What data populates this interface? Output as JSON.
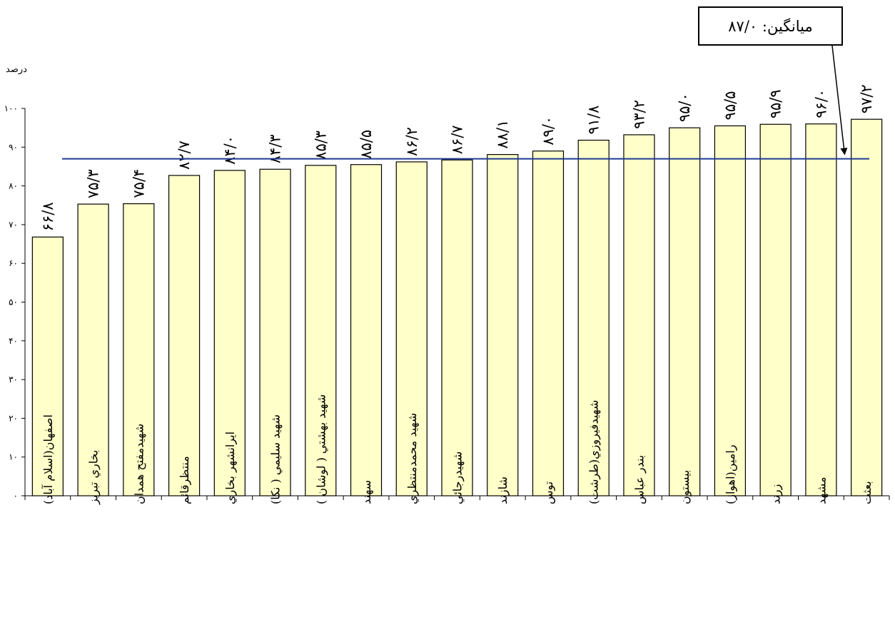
{
  "chart_data": {
    "type": "bar",
    "ylabel": "درصد",
    "ylim": [
      0,
      100
    ],
    "yticks": [
      "۰",
      "۱۰",
      "۲۰",
      "۳۰",
      "۴۰",
      "۵۰",
      "۶۰",
      "۷۰",
      "۸۰",
      "۹۰",
      "۱۰۰"
    ],
    "categories": [
      "اصفهان(اسلام آباد)",
      "بخاري تبريز",
      "شهيدمفتح همدان",
      "منتظرقائم",
      "ايرانشهر بخاري",
      "شهيد سليمي ( نكا)",
      "شهيد بهشتي ( لوشان )",
      "سهند",
      "شهيد محمدمنتظري",
      "شهيدرجائي",
      "شازند",
      "توس",
      "شهيدفيروزي(طرشت)",
      "بندر عباس",
      "بيستون",
      "رامين(اهواز)",
      "زرند",
      "مشهد",
      "بعثت"
    ],
    "values": [
      66.8,
      75.3,
      75.4,
      82.7,
      84.0,
      84.3,
      85.3,
      85.5,
      86.2,
      86.7,
      88.1,
      89.0,
      91.8,
      93.2,
      95.0,
      95.5,
      95.9,
      96.0,
      97.2
    ],
    "value_labels": [
      "۶۶/۸",
      "۷۵/۳",
      "۷۵/۴",
      "۸۲/۷",
      "۸۴/۰",
      "۸۴/۳",
      "۸۵/۳",
      "۸۵/۵",
      "۸۶/۲",
      "۸۶/۷",
      "۸۸/۱",
      "۸۹/۰",
      "۹۱/۸",
      "۹۳/۲",
      "۹۵/۰",
      "۹۵/۵",
      "۹۵/۹",
      "۹۶/۰",
      "۹۷/۲"
    ],
    "average": 87.0,
    "average_label": "ميانگين: ۸۷/۰",
    "colors": {
      "bar_fill": "#FFFFC9",
      "bar_stroke": "#000000",
      "average_line": "#1F3A93"
    }
  }
}
